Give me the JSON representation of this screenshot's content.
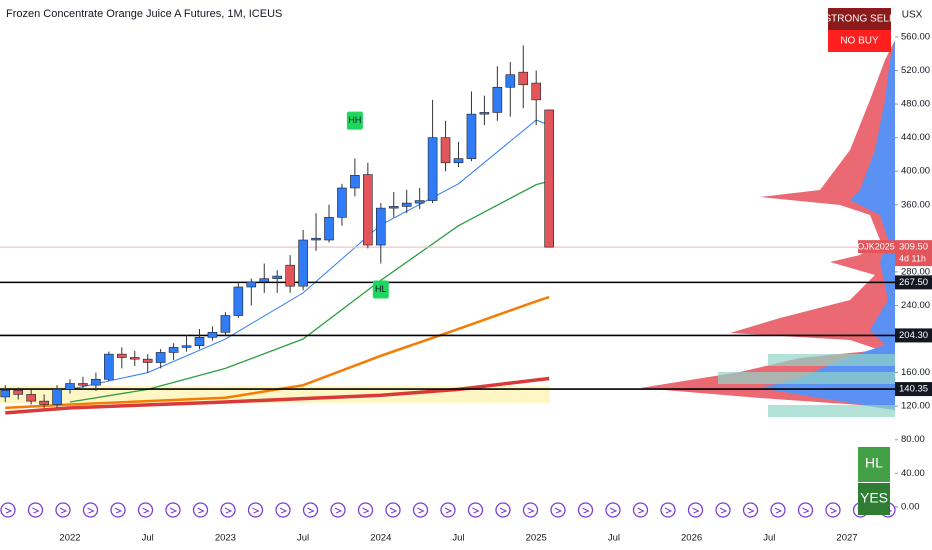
{
  "chart_data": {
    "type": "candlestick",
    "title": "Frozen Concentrate Orange Juice A Futures, 1M, ICEUS",
    "currency": "USX",
    "signals": {
      "primary": "STRONG SELL",
      "secondary": "NO BUY",
      "panel_top": "HL",
      "panel_bottom": "YES"
    },
    "up_color": "#2f7cf6",
    "down_color": "#e2555b",
    "x": [
      "2021-08",
      "2021-09",
      "2021-10",
      "2021-11",
      "2021-12",
      "2022-01",
      "2022-02",
      "2022-03",
      "2022-04",
      "2022-05",
      "2022-06",
      "2022-07",
      "2022-08",
      "2022-09",
      "2022-10",
      "2022-11",
      "2022-12",
      "2023-01",
      "2023-02",
      "2023-03",
      "2023-04",
      "2023-05",
      "2023-06",
      "2023-07",
      "2023-08",
      "2023-09",
      "2023-10",
      "2023-11",
      "2023-12",
      "2024-01",
      "2024-02",
      "2024-03",
      "2024-04",
      "2024-05",
      "2024-06",
      "2024-07",
      "2024-08",
      "2024-09",
      "2024-10",
      "2024-11",
      "2024-12",
      "2025-01",
      "2025-02"
    ],
    "open": [
      131,
      139,
      134,
      126,
      122,
      140,
      147,
      145,
      152,
      182,
      178,
      176,
      172,
      184,
      190,
      192,
      202,
      208,
      228,
      262,
      268,
      272,
      288,
      263,
      318,
      318,
      345,
      380,
      396,
      312,
      356,
      358,
      362,
      365,
      440,
      410,
      415,
      468,
      470,
      500,
      518,
      505,
      473
    ],
    "high": [
      145,
      142,
      140,
      134,
      145,
      152,
      155,
      160,
      185,
      190,
      186,
      182,
      188,
      195,
      205,
      212,
      215,
      232,
      268,
      272,
      290,
      282,
      300,
      330,
      350,
      360,
      385,
      415,
      410,
      362,
      375,
      378,
      380,
      485,
      460,
      435,
      495,
      490,
      525,
      530,
      550,
      520,
      473
    ],
    "low": [
      125,
      128,
      122,
      118,
      118,
      135,
      140,
      138,
      150,
      165,
      168,
      160,
      165,
      175,
      185,
      188,
      198,
      205,
      225,
      240,
      255,
      255,
      255,
      258,
      305,
      315,
      335,
      370,
      308,
      290,
      345,
      350,
      355,
      362,
      400,
      405,
      412,
      455,
      460,
      465,
      475,
      455,
      309
    ],
    "close": [
      139,
      134,
      126,
      122,
      140,
      147,
      145,
      152,
      182,
      178,
      176,
      172,
      184,
      190,
      192,
      202,
      208,
      228,
      262,
      268,
      272,
      275,
      263,
      318,
      320,
      345,
      380,
      395,
      312,
      356,
      358,
      362,
      365,
      440,
      410,
      415,
      468,
      470,
      500,
      515,
      503,
      485,
      309.5
    ],
    "overlays": [
      {
        "color": "#2f7cf6",
        "width": 1,
        "x": [
          "2022-01",
          "2022-07",
          "2023-01",
          "2023-07",
          "2024-01",
          "2024-07",
          "2025-01",
          "2025-02"
        ],
        "values": [
          140,
          160,
          200,
          255,
          336,
          385,
          461,
          455
        ]
      },
      {
        "color": "#2e9e3e",
        "width": 1.3,
        "x": [
          "2022-01",
          "2022-07",
          "2023-01",
          "2023-07",
          "2024-01",
          "2024-07",
          "2025-01",
          "2025-02"
        ],
        "values": [
          125,
          140,
          165,
          200,
          270,
          335,
          384,
          388
        ]
      },
      {
        "color": "#f57c00",
        "width": 2.5,
        "x": [
          "2021-08",
          "2022-01",
          "2023-01",
          "2023-07",
          "2024-01",
          "2024-07",
          "2025-01",
          "2025-02"
        ],
        "values": [
          118,
          122,
          130,
          145,
          180,
          212,
          245,
          250
        ]
      },
      {
        "color": "#d83a3a",
        "width": 3.5,
        "x": [
          "2021-08",
          "2022-01",
          "2023-01",
          "2024-01",
          "2024-07",
          "2025-02"
        ],
        "values": [
          112,
          118,
          125,
          133,
          140,
          153
        ]
      }
    ],
    "levels": {
      "values": [
        267.5,
        204.3,
        140.35
      ],
      "value_labels": [
        "267.50",
        "204.30",
        "140.35"
      ]
    },
    "last": {
      "values": [
        309.5
      ],
      "value_labels": [
        "309.50"
      ],
      "symbol": "OJK2025",
      "countdown": "4d 11h"
    },
    "annotations": [
      {
        "text": "HH",
        "x": "2023-11",
        "at": "high"
      },
      {
        "text": "HL",
        "x": "2024-01",
        "at": "low"
      }
    ],
    "ylim": [
      -24,
      604
    ],
    "yticks": [
      {
        "value": 0,
        "label": "0.00"
      },
      {
        "value": 40,
        "label": "40.00"
      },
      {
        "value": 80,
        "label": "80.00"
      },
      {
        "value": 120,
        "label": "120.00"
      },
      {
        "value": 160,
        "label": "160.00"
      },
      {
        "value": 240,
        "label": "240.00"
      },
      {
        "value": 280,
        "label": "280.00"
      },
      {
        "value": 360,
        "label": "360.00"
      },
      {
        "value": 400,
        "label": "400.00"
      },
      {
        "value": 440,
        "label": "440.00"
      },
      {
        "value": 480,
        "label": "480.00"
      },
      {
        "value": 520,
        "label": "520.00"
      },
      {
        "value": 560,
        "label": "560.00"
      }
    ],
    "xticks": [
      {
        "value": "2022-01",
        "label": "2022"
      },
      {
        "value": "2022-07",
        "label": "Jul"
      },
      {
        "value": "2023-01",
        "label": "2023"
      },
      {
        "value": "2023-07",
        "label": "Jul"
      },
      {
        "value": "2024-01",
        "label": "2024"
      },
      {
        "value": "2024-07",
        "label": "Jul"
      },
      {
        "value": "2025-01",
        "label": "2025"
      },
      {
        "value": "2025-07",
        "label": "Jul"
      },
      {
        "value": "2026-01",
        "label": "2026"
      },
      {
        "value": "2026-07",
        "label": "Jul"
      },
      {
        "value": "2027-01",
        "label": "2027"
      }
    ]
  }
}
